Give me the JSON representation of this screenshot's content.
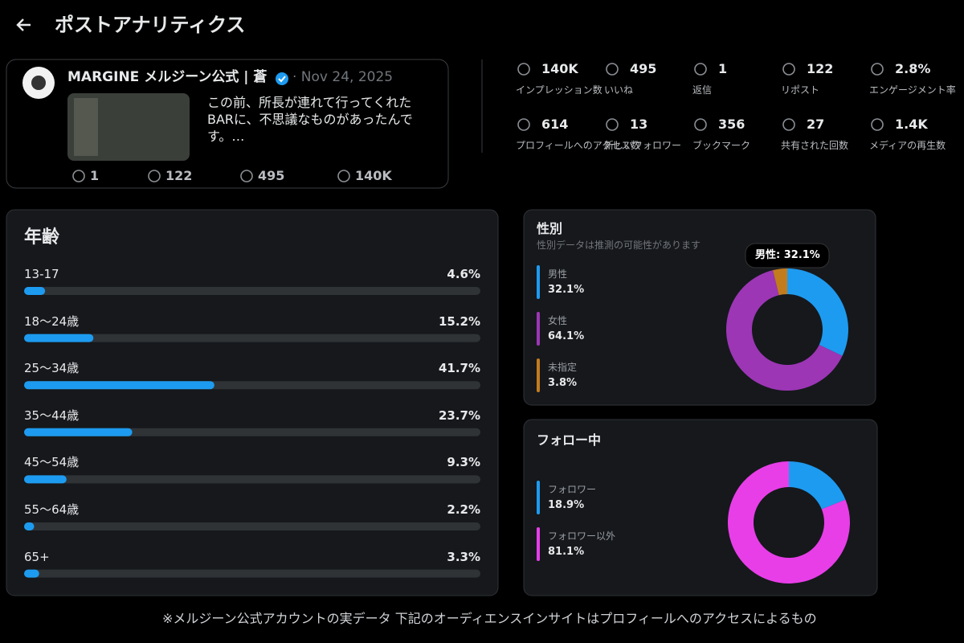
{
  "header": {
    "title": "ポストアナリティクス"
  },
  "post": {
    "author": "MARGINE メルジーン公式 | 蒼",
    "date": "· Nov 24, 2025",
    "text": "この前、所長が連れて行ってくれたBARに、不思議なものがあったんです。…",
    "stats": {
      "replies": "1",
      "reposts": "122",
      "likes": "495",
      "views": "140K"
    }
  },
  "metrics": [
    {
      "value": "140K",
      "label": "インプレッション数"
    },
    {
      "value": "495",
      "label": "いいね"
    },
    {
      "value": "1",
      "label": "返信"
    },
    {
      "value": "122",
      "label": "リポスト"
    },
    {
      "value": "2.8%",
      "label": "エンゲージメント率"
    },
    {
      "value": "614",
      "label": "プロフィールへのアクセス数"
    },
    {
      "value": "13",
      "label": "新しいフォロワー"
    },
    {
      "value": "356",
      "label": "ブックマーク"
    },
    {
      "value": "27",
      "label": "共有された回数"
    },
    {
      "value": "1.4K",
      "label": "メディアの再生数"
    }
  ],
  "age": {
    "title": "年齢",
    "color": "#1d9bf0",
    "rows": [
      {
        "label": "13-17",
        "value": 4.6,
        "value_label": "4.6%"
      },
      {
        "label": "18〜24歳",
        "value": 15.2,
        "value_label": "15.2%"
      },
      {
        "label": "25〜34歳",
        "value": 41.7,
        "value_label": "41.7%"
      },
      {
        "label": "35〜44歳",
        "value": 23.7,
        "value_label": "23.7%"
      },
      {
        "label": "45〜54歳",
        "value": 9.3,
        "value_label": "9.3%"
      },
      {
        "label": "55〜64歳",
        "value": 2.2,
        "value_label": "2.2%"
      },
      {
        "label": "65+",
        "value": 3.3,
        "value_label": "3.3%"
      }
    ]
  },
  "gender": {
    "title": "性別",
    "subtitle": "性別データは推測の可能性があります",
    "tooltip": "男性: 32.1%",
    "segments": [
      {
        "label": "男性",
        "value": 32.1,
        "value_label": "32.1%",
        "color": "#1d9bf0"
      },
      {
        "label": "女性",
        "value": 64.1,
        "value_label": "64.1%",
        "color": "#9c36b5"
      },
      {
        "label": "未指定",
        "value": 3.8,
        "value_label": "3.8%",
        "color": "#c27c1e"
      }
    ]
  },
  "following": {
    "title": "フォロー中",
    "segments": [
      {
        "label": "フォロワー",
        "value": 18.9,
        "value_label": "18.9%",
        "color": "#1d9bf0"
      },
      {
        "label": "フォロワー以外",
        "value": 81.1,
        "value_label": "81.1%",
        "color": "#e83ee8"
      }
    ]
  },
  "footnote": "※メルジーン公式アカウントの実データ 下記のオーディエンスインサイトはプロフィールへのアクセスによるもの"
}
